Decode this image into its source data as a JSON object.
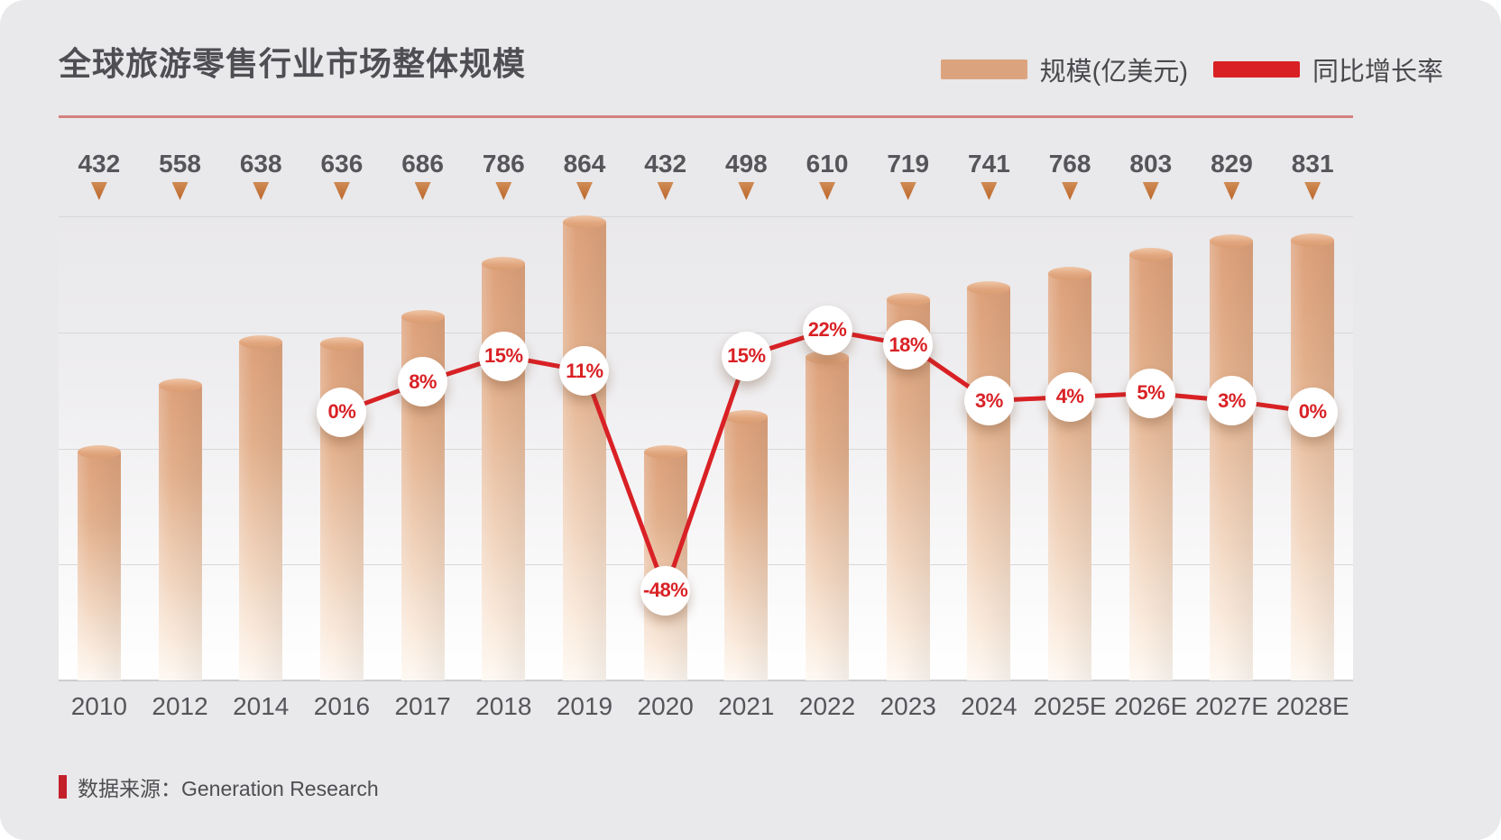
{
  "title": "全球旅游零售行业市场整体规模",
  "legend": [
    {
      "label": "规模(亿美元)",
      "type": "bar",
      "color": "#dca47e"
    },
    {
      "label": "同比增长率",
      "type": "line",
      "color": "#d92125"
    }
  ],
  "source": {
    "label": "数据来源：Generation Research"
  },
  "colors": {
    "background": "#e9e8ea",
    "bar_top": "#dda17b",
    "bar_bottom": "#fef8f2",
    "line_red": "#d92125",
    "divider_salmon": "#d5817f",
    "text_dark": "#56555a",
    "triangle_orange": "#bb662b"
  },
  "chart_data": {
    "type": "bar",
    "title": "全球旅游零售行业市场整体规模",
    "categories": [
      "2010",
      "2012",
      "2014",
      "2016",
      "2017",
      "2018",
      "2019",
      "2020",
      "2021",
      "2022",
      "2023",
      "2024",
      "2025E",
      "2026E",
      "2027E",
      "2028E"
    ],
    "series": [
      {
        "name": "规模(亿美元)",
        "type": "bar",
        "values": [
          432,
          558,
          638,
          636,
          686,
          786,
          864,
          432,
          498,
          610,
          719,
          741,
          768,
          803,
          829,
          831
        ]
      },
      {
        "name": "同比增长率",
        "type": "line",
        "unit": "%",
        "values": [
          null,
          null,
          null,
          0,
          8,
          15,
          11,
          -48,
          15,
          22,
          18,
          3,
          4,
          5,
          3,
          0
        ]
      }
    ],
    "ylim": [
      0,
      875
    ],
    "grid": true,
    "legend_position": "top-right",
    "value_labels": "above-with-triangle-markers",
    "growth_labels_style": "white-circles-red-text"
  }
}
